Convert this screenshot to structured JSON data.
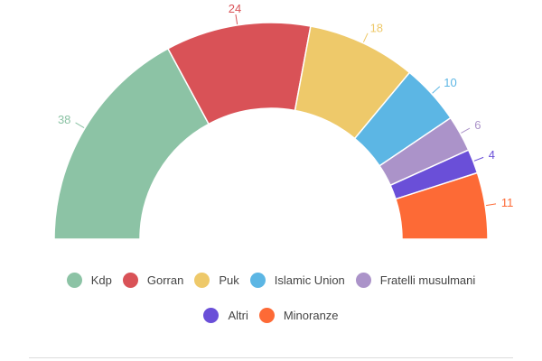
{
  "chart_data": {
    "type": "pie",
    "subtype": "semicircle-parliament",
    "title": "",
    "total": 111,
    "categories": [
      "Kdp",
      "Gorran",
      "Puk",
      "Islamic Union",
      "Fratelli musulmani",
      "Altri",
      "Minoranze"
    ],
    "values": [
      38,
      24,
      18,
      10,
      6,
      4,
      11
    ],
    "colors": [
      "#8cc3a5",
      "#d95257",
      "#eec96a",
      "#5cb6e4",
      "#ab93c9",
      "#6a4fd8",
      "#fd6a36"
    ],
    "legend_position": "bottom"
  },
  "legend": {
    "row1": [
      {
        "label": "Kdp",
        "color": "#8cc3a5"
      },
      {
        "label": "Gorran",
        "color": "#d95257"
      },
      {
        "label": "Puk",
        "color": "#eec96a"
      },
      {
        "label": "Islamic Union",
        "color": "#5cb6e4"
      },
      {
        "label": "Fratelli musulmani",
        "color": "#ab93c9"
      }
    ],
    "row2": [
      {
        "label": "Altri",
        "color": "#6a4fd8"
      },
      {
        "label": "Minoranze",
        "color": "#fd6a36"
      }
    ]
  }
}
